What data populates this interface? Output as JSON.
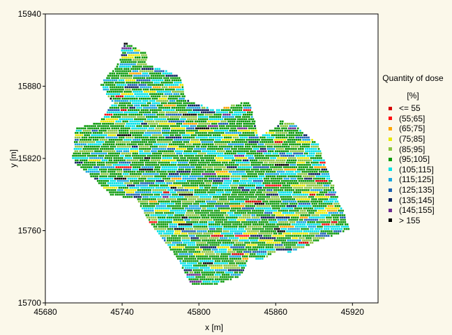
{
  "chart_data": {
    "type": "scatter",
    "xlabel": "x [m]",
    "ylabel": "y [m]",
    "xlim": [
      45680,
      45940
    ],
    "ylim": [
      15700,
      15940
    ],
    "xticks": [
      45680,
      45740,
      45800,
      45860,
      45920
    ],
    "yticks": [
      15700,
      15760,
      15820,
      15880,
      15940
    ],
    "grid": false,
    "legend": {
      "title": "Quantity of dose",
      "unit": "[%]",
      "position": "right"
    },
    "series": [
      {
        "name": "<= 55",
        "color": "#d40000",
        "share": 0.004
      },
      {
        "name": "(55;65]",
        "color": "#ff1010",
        "share": 0.005
      },
      {
        "name": "(65;75]",
        "color": "#ffa500",
        "share": 0.02
      },
      {
        "name": "(75;85]",
        "color": "#e8e800",
        "share": 0.05
      },
      {
        "name": "(85;95]",
        "color": "#8ac440",
        "share": 0.12
      },
      {
        "name": "(95;105]",
        "color": "#0a9a0a",
        "share": 0.5
      },
      {
        "name": "(105;115]",
        "color": "#00e0e6",
        "share": 0.16
      },
      {
        "name": "(115;125]",
        "color": "#17a5e0",
        "share": 0.06
      },
      {
        "name": "(125;135]",
        "color": "#1a5fb0",
        "share": 0.03
      },
      {
        "name": "(135;145]",
        "color": "#0b1f5c",
        "share": 0.025
      },
      {
        "name": "(145;155]",
        "color": "#6a2a90",
        "share": 0.01
      },
      {
        "name": "> 155",
        "color": "#000000",
        "share": 0.016
      }
    ],
    "field_outline": [
      [
        45741,
        15917
      ],
      [
        45760,
        15907
      ],
      [
        45758,
        15899
      ],
      [
        45786,
        15888
      ],
      [
        45790,
        15869
      ],
      [
        45812,
        15860
      ],
      [
        45825,
        15864
      ],
      [
        45839,
        15868
      ],
      [
        45847,
        15838
      ],
      [
        45862,
        15847
      ],
      [
        45864,
        15851
      ],
      [
        45874,
        15849
      ],
      [
        45893,
        15832
      ],
      [
        45918,
        15761
      ],
      [
        45910,
        15758
      ],
      [
        45891,
        15751
      ],
      [
        45887,
        15748
      ],
      [
        45871,
        15742
      ],
      [
        45862,
        15744
      ],
      [
        45848,
        15735
      ],
      [
        45840,
        15738
      ],
      [
        45832,
        15722
      ],
      [
        45812,
        15715
      ],
      [
        45794,
        15715
      ],
      [
        45785,
        15734
      ],
      [
        45761,
        15767
      ],
      [
        45752,
        15786
      ],
      [
        45730,
        15790
      ],
      [
        45718,
        15803
      ],
      [
        45701,
        15818
      ],
      [
        45704,
        15845
      ],
      [
        45722,
        15850
      ],
      [
        45733,
        15866
      ],
      [
        45723,
        15881
      ],
      [
        45736,
        15898
      ],
      [
        45738,
        15900
      ]
    ]
  }
}
